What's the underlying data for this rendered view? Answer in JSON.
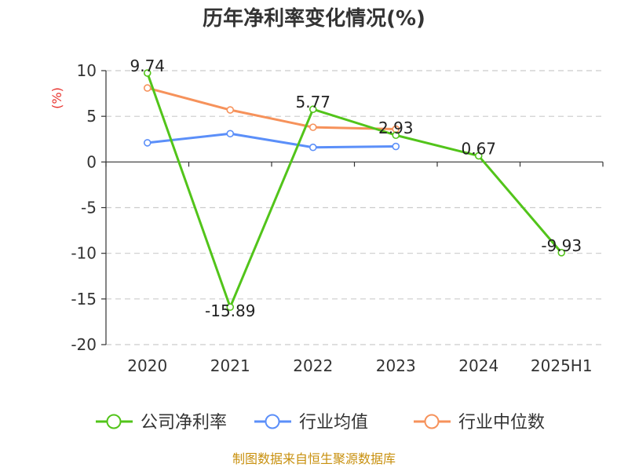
{
  "chart_data": {
    "type": "line",
    "title": "历年净利率变化情况(%)",
    "ylabel": "(%)",
    "categories": [
      "2020",
      "2021",
      "2022",
      "2023",
      "2024",
      "2025H1"
    ],
    "ylim": [
      -20,
      10
    ],
    "yticks": [
      10,
      5,
      0,
      -5,
      -10,
      -15,
      -20
    ],
    "ytick_labels": [
      "10",
      "5",
      "0",
      "-5",
      "-10",
      "-15",
      "-20"
    ],
    "grid": true,
    "legend_position": "bottom",
    "series": [
      {
        "name": "公司净利率",
        "color": "#52c41a",
        "values": [
          9.74,
          -15.89,
          5.77,
          2.93,
          0.67,
          -9.93
        ],
        "labels": [
          "9.74",
          "-15.89",
          "5.77",
          "2.93",
          "0.67",
          "-9.93"
        ]
      },
      {
        "name": "行业均值",
        "color": "#5b8ff9",
        "values": [
          2.1,
          3.1,
          1.6,
          1.7,
          null,
          null
        ]
      },
      {
        "name": "行业中位数",
        "color": "#f6925b",
        "values": [
          8.1,
          5.7,
          3.8,
          3.6,
          null,
          null
        ]
      }
    ]
  },
  "footer": {
    "source": "制图数据来自恒生聚源数据库",
    "source_color": "#c8900e"
  },
  "colors": {
    "ylabel": "#e8322d",
    "axis": "#333333",
    "grid": "#cccccc"
  }
}
